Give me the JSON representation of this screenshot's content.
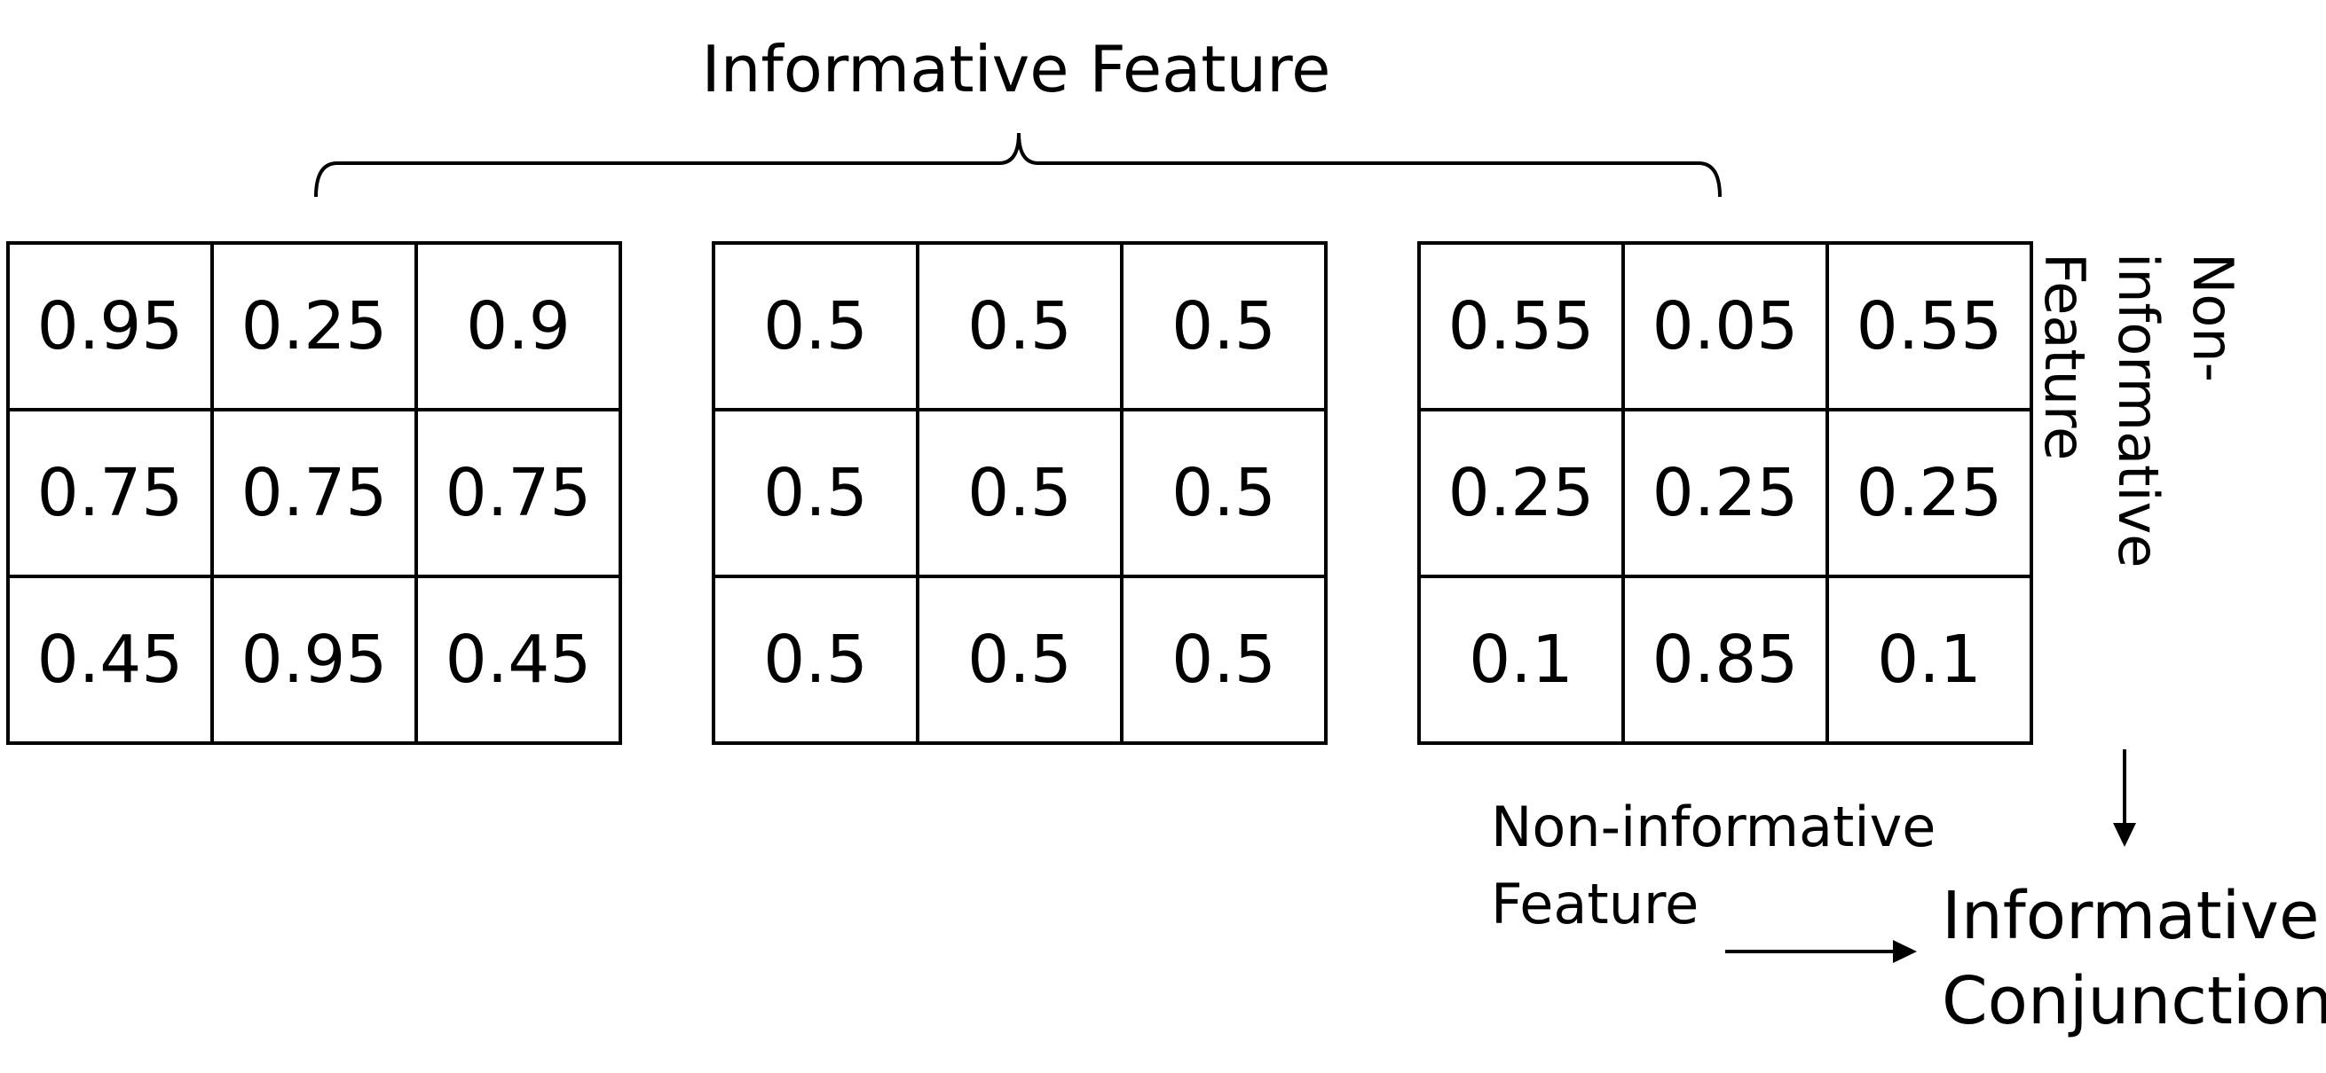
{
  "top_label": "Informative Feature",
  "side_label": [
    "Non-informative",
    "Feature"
  ],
  "bottom_label": [
    "Non-informative",
    "Feature"
  ],
  "result_label": [
    "Informative",
    "Conjunction"
  ],
  "grids": [
    {
      "rows": [
        [
          "0.95",
          "0.25",
          "0.9"
        ],
        [
          "0.75",
          "0.75",
          "0.75"
        ],
        [
          "0.45",
          "0.95",
          "0.45"
        ]
      ]
    },
    {
      "rows": [
        [
          "0.5",
          "0.5",
          "0.5"
        ],
        [
          "0.5",
          "0.5",
          "0.5"
        ],
        [
          "0.5",
          "0.5",
          "0.5"
        ]
      ]
    },
    {
      "rows": [
        [
          "0.55",
          "0.05",
          "0.55"
        ],
        [
          "0.25",
          "0.25",
          "0.25"
        ],
        [
          "0.1",
          "0.85",
          "0.1"
        ]
      ]
    }
  ]
}
